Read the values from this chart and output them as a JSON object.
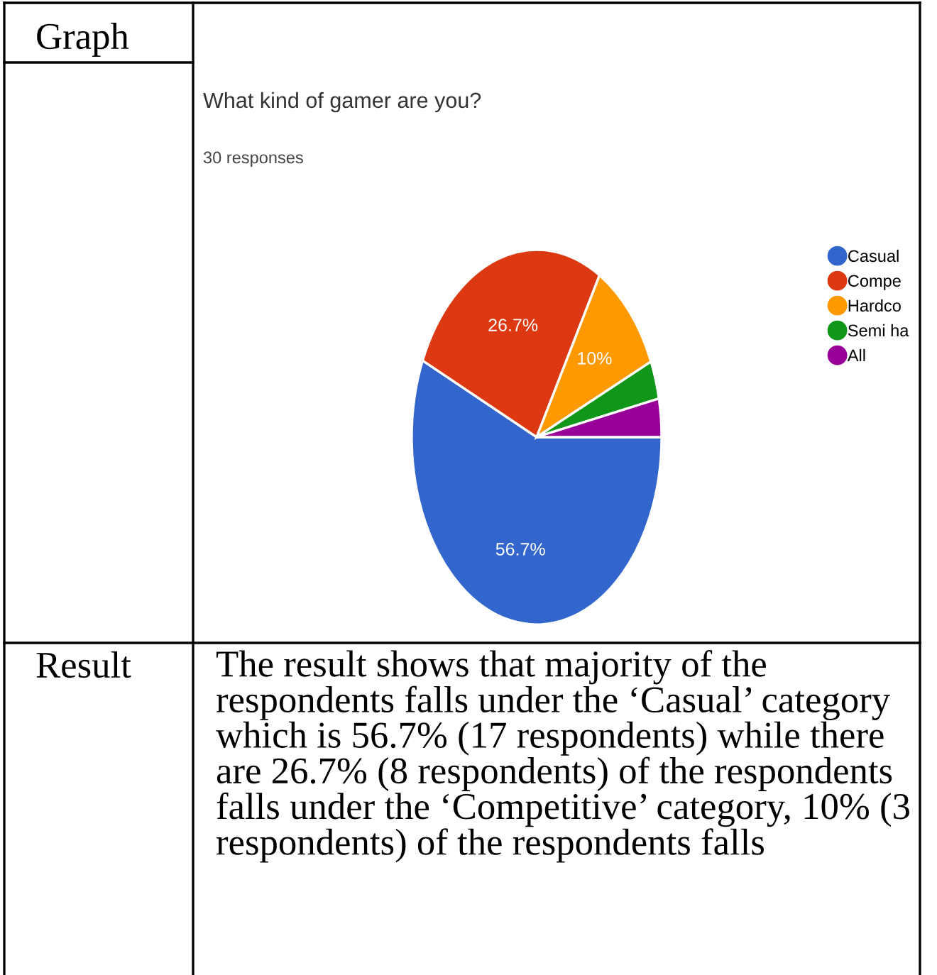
{
  "chart_data": {
    "type": "pie",
    "title": "What kind of gamer are you?",
    "subtitle": "30 responses",
    "categories": [
      "Casual",
      "Compe",
      "Hardco",
      "Semi ha",
      "All"
    ],
    "values": [
      56.7,
      26.7,
      10,
      3.3,
      3.3
    ],
    "colors": [
      "#3366cc",
      "#dc3912",
      "#ff9900",
      "#109618",
      "#990099"
    ],
    "value_labels": [
      "56.7%",
      "26.7%",
      "10%",
      null,
      null
    ],
    "legend": "right",
    "annotations": [
      "Graph",
      "Result",
      "The result shows that majority of the respondents falls under the ‘Casual’ category which is 56.7% (17 respondents) while there are 26.7% (8 respondents) of the respondents falls under the ‘Competitive’ category, 10% (3 respondents) of the respondents falls"
    ]
  }
}
